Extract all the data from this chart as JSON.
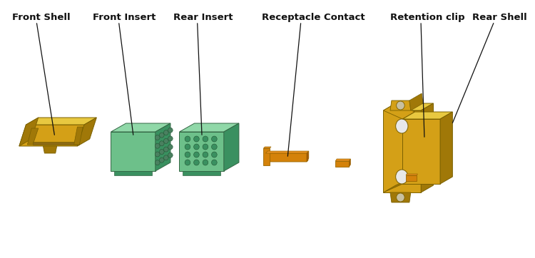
{
  "background_color": "#ffffff",
  "labels": [
    "Front Shell",
    "Front Insert",
    "Rear Insert",
    "Receptacle Contact",
    "Retention clip",
    "Rear Shell"
  ],
  "gold": "#D4A017",
  "gold_top": "#E8C840",
  "gold_side": "#A07808",
  "gold_dark": "#8B6914",
  "green_face": "#6DC08A",
  "green_top": "#90D8A8",
  "green_side": "#3A9060",
  "green_hole": "#4A8060",
  "orange": "#D4820A",
  "orange_top": "#E89020",
  "orange_side": "#A05808",
  "text_color": "#111111",
  "font_size": 9.5,
  "font_weight": "bold"
}
